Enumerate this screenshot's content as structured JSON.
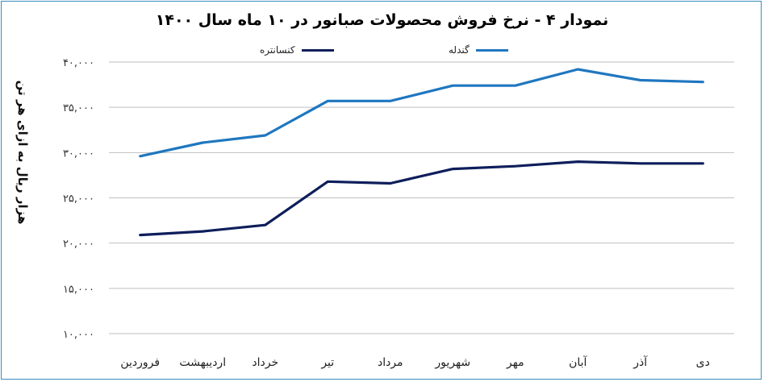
{
  "chart_data": {
    "type": "line",
    "title": "نمودار ۴ - نرخ فروش محصولات صبانور در ۱۰ ماه سال ۱۴۰۰",
    "ylabel": "هزار ریال به ازای هر تن",
    "xlabel": "",
    "categories": [
      "فروردین",
      "اردیبهشت",
      "خرداد",
      "تیر",
      "مرداد",
      "شهریور",
      "مهر",
      "آبان",
      "آذر",
      "دی"
    ],
    "ylim": [
      10000,
      40000
    ],
    "yticks": [
      10000,
      15000,
      20000,
      25000,
      30000,
      35000,
      40000
    ],
    "ytick_labels": [
      "۱۰,۰۰۰",
      "۱۵,۰۰۰",
      "۲۰,۰۰۰",
      "۲۵,۰۰۰",
      "۳۰,۰۰۰",
      "۳۵,۰۰۰",
      "۴۰,۰۰۰"
    ],
    "grid": true,
    "legend_position": "top",
    "series": [
      {
        "name": "کنسانتره",
        "color": "#0e1e5b",
        "values": [
          20900,
          21300,
          22000,
          26800,
          26600,
          28200,
          28500,
          29000,
          28800,
          28800
        ]
      },
      {
        "name": "گندله",
        "color": "#1f77c0",
        "values": [
          29600,
          31100,
          31900,
          35700,
          35700,
          37400,
          37400,
          39200,
          38000,
          37800
        ]
      }
    ]
  }
}
